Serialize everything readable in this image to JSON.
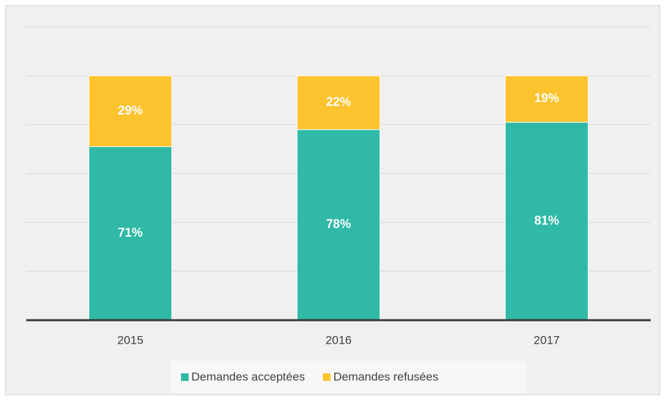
{
  "chart_data": {
    "type": "stacked_bar",
    "categories": [
      "2015",
      "2016",
      "2017"
    ],
    "series": [
      {
        "name": "Demandes acceptées",
        "color": "#2fb9a6",
        "values": [
          71,
          78,
          81
        ],
        "value_labels": [
          "71%",
          "78%",
          "81%"
        ]
      },
      {
        "name": "Demandes refusées",
        "color": "#fcc32e",
        "values": [
          29,
          22,
          19
        ],
        "value_labels": [
          "29%",
          "22%",
          "19%"
        ]
      }
    ],
    "ylim": [
      0,
      120
    ],
    "yticks": [
      0,
      20,
      40,
      60,
      80,
      100,
      120
    ],
    "grid": true,
    "legend": "bottom"
  }
}
